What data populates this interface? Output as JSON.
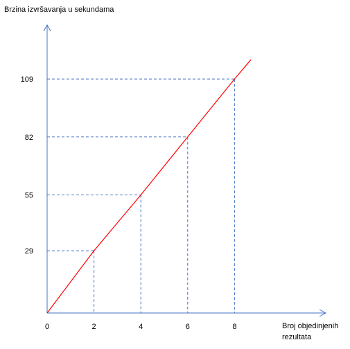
{
  "chart_data": {
    "type": "line",
    "title": "",
    "ylabel": "Brzina izvršavanja u sekundama",
    "xlabel_lines": [
      "Broj objedinjenih",
      "rezultata"
    ],
    "x": [
      0,
      2,
      4,
      6,
      8
    ],
    "series": [
      {
        "values": [
          0,
          29,
          55,
          82,
          109
        ],
        "color": "#ff0000"
      }
    ],
    "extension_point": {
      "x": 8.7,
      "y": 118
    },
    "x_ticks": [
      {
        "value": 0,
        "label": "0"
      },
      {
        "value": 2,
        "label": "2"
      },
      {
        "value": 4,
        "label": "4"
      },
      {
        "value": 6,
        "label": "6"
      },
      {
        "value": 8,
        "label": "8"
      }
    ],
    "y_ticks": [
      {
        "value": 29,
        "label": "29"
      },
      {
        "value": 55,
        "label": "55"
      },
      {
        "value": 82,
        "label": "82"
      },
      {
        "value": 109,
        "label": "109"
      }
    ],
    "guide_lines": "dashed",
    "axis_color": "#4472c4",
    "grid": false,
    "legend": "none"
  }
}
